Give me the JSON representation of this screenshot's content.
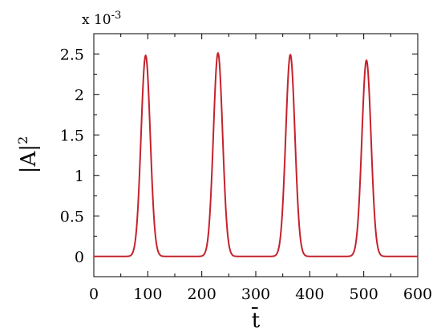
{
  "chart_data": {
    "type": "line",
    "title": "",
    "xlabel": "t̄",
    "ylabel_main": "|A|",
    "ylabel_sup": "2",
    "xlim": [
      0,
      600
    ],
    "ylim": [
      -0.25,
      2.75
    ],
    "y_scale_factor_base": "x 10",
    "y_scale_factor_exp": "-3",
    "x_ticks": [
      "0",
      "100",
      "200",
      "300",
      "400",
      "500",
      "600"
    ],
    "x_tick_values": [
      0,
      100,
      200,
      300,
      400,
      500,
      600
    ],
    "y_ticks": [
      "0",
      "0.5",
      "1",
      "1.5",
      "2",
      "2.5"
    ],
    "y_tick_values": [
      0,
      0.5,
      1,
      1.5,
      2,
      2.5
    ],
    "grid": false,
    "legend": "none",
    "series": [
      {
        "color": "#c4222d",
        "peaks": [
          {
            "center": 96,
            "height": 2.48,
            "width": 8.5
          },
          {
            "center": 230,
            "height": 2.51,
            "width": 8.5
          },
          {
            "center": 364,
            "height": 2.49,
            "width": 8.5
          },
          {
            "center": 505,
            "height": 2.42,
            "width": 8.5
          }
        ]
      }
    ]
  }
}
